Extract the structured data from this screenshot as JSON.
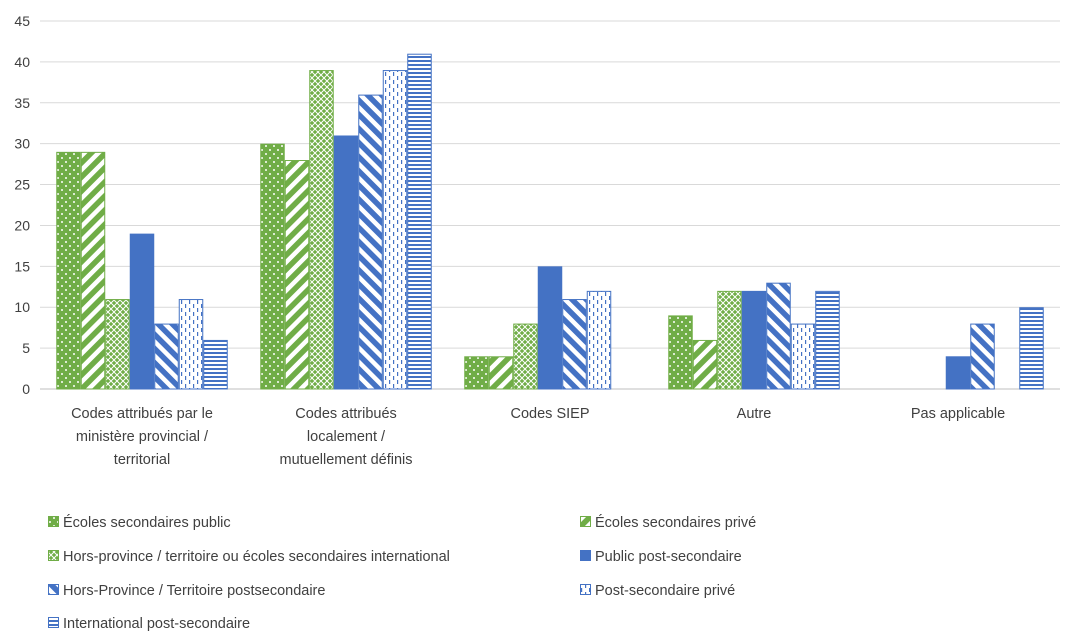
{
  "chart_data": {
    "type": "bar",
    "title": "",
    "xlabel": "",
    "ylabel": "",
    "ylim": [
      0,
      45
    ],
    "yticks": [
      0,
      5,
      10,
      15,
      20,
      25,
      30,
      35,
      40,
      45
    ],
    "grid": true,
    "legend_position": "bottom",
    "categories": [
      "Codes attribués par le ministère provincial / territorial",
      "Codes attribués localement / mutuellement définis",
      "Codes SIEP",
      "Autre",
      "Pas applicable"
    ],
    "category_lines": [
      [
        "Codes attribués par le",
        "ministère provincial /",
        "territorial"
      ],
      [
        "Codes attribués",
        "localement /",
        "mutuellement définis"
      ],
      [
        "Codes SIEP"
      ],
      [
        "Autre"
      ],
      [
        "Pas applicable"
      ]
    ],
    "series": [
      {
        "name": "Écoles secondaires public",
        "color": "#70ad47",
        "pattern": "dots",
        "values": [
          29,
          30,
          4,
          9,
          null
        ]
      },
      {
        "name": "Écoles secondaires privé",
        "color": "#70ad47",
        "pattern": "wide-diag-up",
        "values": [
          29,
          28,
          4,
          6,
          null
        ]
      },
      {
        "name": "Hors-province / territoire ou écoles secondaires international",
        "color": "#70ad47",
        "pattern": "crosshatch",
        "values": [
          11,
          39,
          8,
          12,
          null
        ]
      },
      {
        "name": "Public post-secondaire",
        "color": "#4472c4",
        "pattern": "solid",
        "values": [
          19,
          31,
          15,
          12,
          4
        ]
      },
      {
        "name": "Hors-Province / Territoire postsecondaire",
        "color": "#4472c4",
        "pattern": "wide-diag-down",
        "values": [
          8,
          36,
          11,
          13,
          8
        ]
      },
      {
        "name": "Post-secondaire privé",
        "color": "#4472c4",
        "pattern": "dashed-vertical",
        "values": [
          11,
          39,
          12,
          8,
          null
        ]
      },
      {
        "name": "International post-secondaire",
        "color": "#4472c4",
        "pattern": "horizontal",
        "values": [
          6,
          41,
          null,
          12,
          10
        ]
      }
    ]
  }
}
